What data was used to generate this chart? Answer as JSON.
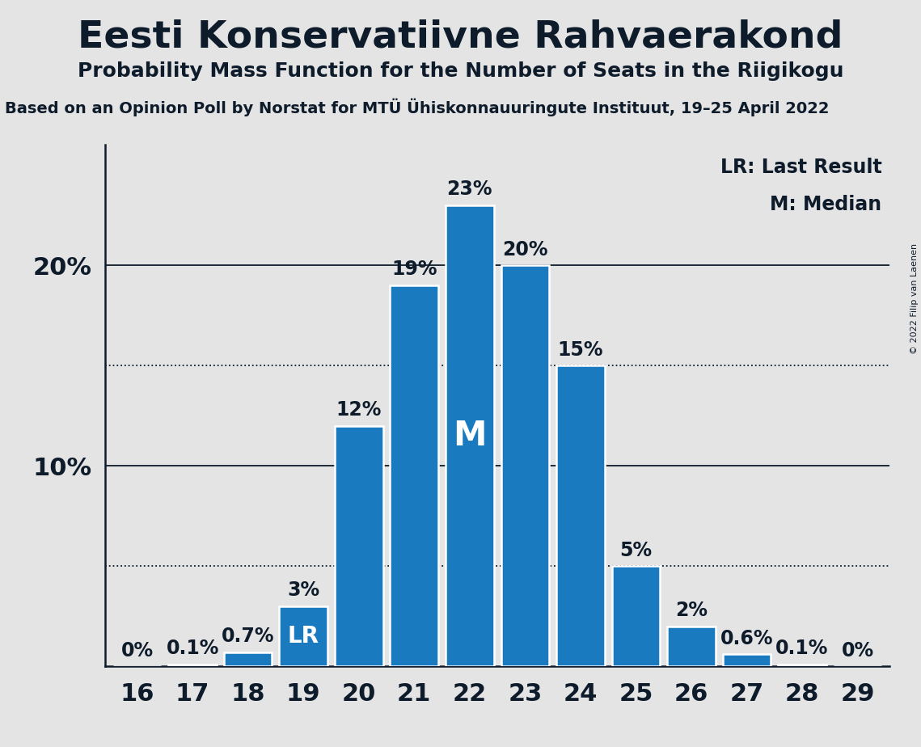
{
  "title": "Eesti Konservatiivne Rahvaerakond",
  "subtitle": "Probability Mass Function for the Number of Seats in the Riigikogu",
  "source_line": "Based on an Opinion Poll by Norstat for MTÜ Ühiskonnauuringute Instituut, 19–25 April 2022",
  "copyright": "© 2022 Filip van Laenen",
  "seats": [
    16,
    17,
    18,
    19,
    20,
    21,
    22,
    23,
    24,
    25,
    26,
    27,
    28,
    29
  ],
  "probabilities": [
    0.0,
    0.1,
    0.7,
    3.0,
    12.0,
    19.0,
    23.0,
    20.0,
    15.0,
    5.0,
    2.0,
    0.6,
    0.1,
    0.0
  ],
  "bar_color": "#1a7abf",
  "bar_edge_color": "#ffffff",
  "background_color": "#e4e4e4",
  "text_color": "#0d1b2a",
  "median_seat": 22,
  "last_result_seat": 19,
  "legend_lr": "LR: Last Result",
  "legend_m": "M: Median",
  "dotted_lines": [
    5.0,
    15.0
  ],
  "solid_lines": [
    10.0,
    20.0
  ],
  "ylim": [
    0,
    26
  ],
  "bar_labels": [
    "0%",
    "0.1%",
    "0.7%",
    "LR",
    "12%",
    "19%",
    "23%",
    "20%",
    "15%",
    "5%",
    "2%",
    "0.6%",
    "0.1%",
    "0%"
  ]
}
